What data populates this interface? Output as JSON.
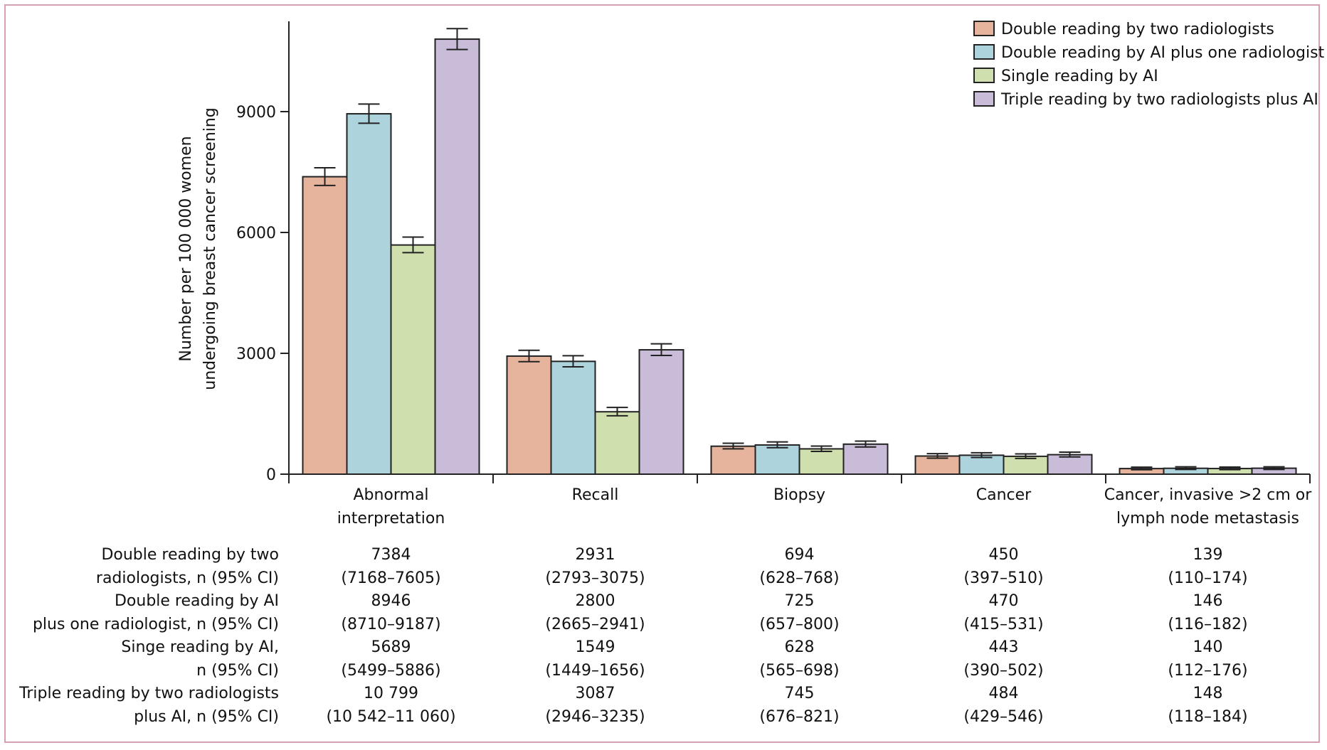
{
  "chart_data": {
    "type": "bar",
    "ylabel_lines": [
      "Number per 100 000 women",
      "undergoing breast cancer screening"
    ],
    "ylim": [
      0,
      11100
    ],
    "yticks": [
      {
        "value": 0,
        "label": "0"
      },
      {
        "value": 3000,
        "label": "3000"
      },
      {
        "value": 6000,
        "label": "6000"
      },
      {
        "value": 9000,
        "label": "9000"
      }
    ],
    "legend_position": "top-right",
    "categories": [
      {
        "lines": [
          "Abnormal",
          "interpretation"
        ]
      },
      {
        "lines": [
          "Recall"
        ]
      },
      {
        "lines": [
          "Biopsy"
        ]
      },
      {
        "lines": [
          "Cancer"
        ]
      },
      {
        "lines": [
          "Cancer, invasive >2 cm or",
          "lymph node metastasis"
        ]
      }
    ],
    "series": [
      {
        "name": "Double reading by two radiologists",
        "color": "#e6b39c",
        "values": [
          7384,
          2931,
          694,
          450,
          139
        ],
        "ci_low": [
          7168,
          2793,
          628,
          397,
          110
        ],
        "ci_high": [
          7605,
          3075,
          768,
          510,
          174
        ]
      },
      {
        "name": "Double reading by AI plus one radiologist",
        "color": "#add3dc",
        "values": [
          8946,
          2800,
          725,
          470,
          146
        ],
        "ci_low": [
          8710,
          2665,
          657,
          415,
          116
        ],
        "ci_high": [
          9187,
          2941,
          800,
          531,
          182
        ]
      },
      {
        "name": "Single reading by AI",
        "color": "#cfdfad",
        "values": [
          5689,
          1549,
          628,
          443,
          140
        ],
        "ci_low": [
          5499,
          1449,
          565,
          390,
          112
        ],
        "ci_high": [
          5886,
          1656,
          698,
          502,
          176
        ]
      },
      {
        "name": "Triple reading by two radiologists plus AI",
        "color": "#c9bcd8",
        "values": [
          10799,
          3087,
          745,
          484,
          148
        ],
        "ci_low": [
          10542,
          2946,
          676,
          429,
          118
        ],
        "ci_high": [
          11060,
          3235,
          821,
          546,
          184
        ]
      }
    ]
  },
  "table": {
    "rows": [
      {
        "label_lines": [
          "Double reading by two",
          "radiologists, n (95% CI)"
        ],
        "values": [
          "7384",
          "2931",
          "694",
          "450",
          "139"
        ],
        "cis": [
          "(7168–7605)",
          "(2793–3075)",
          "(628–768)",
          "(397–510)",
          "(110–174)"
        ]
      },
      {
        "label_lines": [
          "Double reading by AI",
          "plus one radiologist, n (95% CI)"
        ],
        "values": [
          "8946",
          "2800",
          "725",
          "470",
          "146"
        ],
        "cis": [
          "(8710–9187)",
          "(2665–2941)",
          "(657–800)",
          "(415–531)",
          "(116–182)"
        ]
      },
      {
        "label_lines": [
          "Singe reading by AI,",
          "n (95% CI)"
        ],
        "values": [
          "5689",
          "1549",
          "628",
          "443",
          "140"
        ],
        "cis": [
          "(5499–5886)",
          "(1449–1656)",
          "(565–698)",
          "(390–502)",
          "(112–176)"
        ]
      },
      {
        "label_lines": [
          "Triple reading by two radiologists",
          "plus AI, n (95% CI)"
        ],
        "values": [
          "10 799",
          "3087",
          "745",
          "484",
          "148"
        ],
        "cis": [
          "(10 542–11 060)",
          "(2946–3235)",
          "(676–821)",
          "(429–546)",
          "(118–184)"
        ]
      }
    ]
  }
}
